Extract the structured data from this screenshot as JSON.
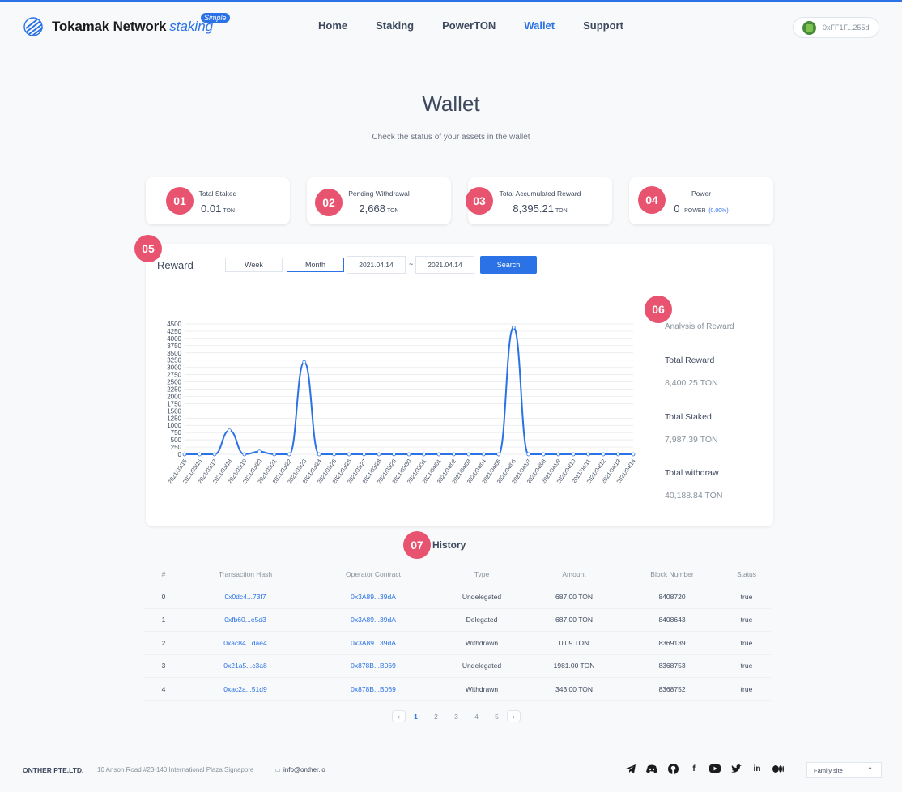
{
  "header": {
    "brand": "Tokamak Network",
    "brand_suffix": "staking",
    "badge": "Simple",
    "nav": [
      "Home",
      "Staking",
      "PowerTON",
      "Wallet",
      "Support"
    ],
    "active_nav": "Wallet",
    "account": "0xFF1F...255d"
  },
  "page": {
    "title": "Wallet",
    "subtitle": "Check the status of your assets in the wallet"
  },
  "summary": [
    {
      "marker": "01",
      "label": "Total Staked",
      "value": "0.01",
      "unit": "TON"
    },
    {
      "marker": "02",
      "label": "Pending Withdrawal",
      "value": "2,668",
      "unit": "TON"
    },
    {
      "marker": "03",
      "label": "Total Accumulated Reward",
      "value": "8,395.21",
      "unit": "TON"
    },
    {
      "marker": "04",
      "label": "Power",
      "value": "0",
      "unit": "POWER",
      "extra": "(0.00%)"
    }
  ],
  "reward": {
    "marker": "05",
    "title": "Reward",
    "week_label": "Week",
    "month_label": "Month",
    "date_from": "2021.04.14",
    "separator": "~",
    "date_to": "2021.04.14",
    "search_label": "Search"
  },
  "analysis": {
    "marker": "06",
    "title": "Analysis of Reward",
    "stats": [
      {
        "label": "Total Reward",
        "value": "8,400.25 TON"
      },
      {
        "label": "Total Staked",
        "value": "7,987.39 TON"
      },
      {
        "label": "Total withdraw",
        "value": "40,188.84 TON"
      }
    ]
  },
  "chart_data": {
    "type": "line",
    "title": "",
    "xlabel": "",
    "ylabel": "",
    "ylim": [
      0,
      4500
    ],
    "yticks": [
      0,
      250,
      500,
      750,
      1000,
      1250,
      1500,
      1750,
      2000,
      2250,
      2500,
      2750,
      3000,
      3250,
      3500,
      3750,
      4000,
      4250,
      4500
    ],
    "grid": true,
    "color": "#2a72e5",
    "categories": [
      "2021/03/15",
      "2021/03/16",
      "2021/03/17",
      "2021/03/18",
      "2021/03/19",
      "2021/03/20",
      "2021/03/21",
      "2021/03/22",
      "2021/03/23",
      "2021/03/24",
      "2021/03/25",
      "2021/03/26",
      "2021/03/27",
      "2021/03/28",
      "2021/03/29",
      "2021/03/30",
      "2021/03/31",
      "2021/04/01",
      "2021/04/02",
      "2021/04/03",
      "2021/04/04",
      "2021/04/05",
      "2021/04/06",
      "2021/04/07",
      "2021/04/08",
      "2021/04/09",
      "2021/04/10",
      "2021/04/11",
      "2021/04/12",
      "2021/04/13",
      "2021/04/14"
    ],
    "values": [
      0,
      0,
      0,
      820,
      0,
      90,
      0,
      0,
      3180,
      0,
      0,
      0,
      0,
      0,
      0,
      0,
      0,
      0,
      0,
      0,
      0,
      0,
      4380,
      0,
      0,
      0,
      0,
      0,
      0,
      0,
      0
    ]
  },
  "history": {
    "marker": "07",
    "title": "History",
    "columns": [
      "#",
      "Transaction Hash",
      "Operator Contract",
      "Type",
      "Amount",
      "Block Number",
      "Status"
    ],
    "rows": [
      [
        "0",
        "0x0dc4...73f7",
        "0x3A89...39dA",
        "Undelegated",
        "687.00 TON",
        "8408720",
        "true"
      ],
      [
        "1",
        "0xfb60...e5d3",
        "0x3A89...39dA",
        "Delegated",
        "687.00 TON",
        "8408643",
        "true"
      ],
      [
        "2",
        "0xac84...dae4",
        "0x3A89...39dA",
        "Withdrawn",
        "0.09 TON",
        "8369139",
        "true"
      ],
      [
        "3",
        "0x21a5...c3a8",
        "0x878B...B069",
        "Undelegated",
        "1981.00 TON",
        "8368753",
        "true"
      ],
      [
        "4",
        "0xac2a...51d9",
        "0x878B...B069",
        "Withdrawn",
        "343.00 TON",
        "8368752",
        "true"
      ]
    ],
    "pages": [
      "1",
      "2",
      "3",
      "4",
      "5"
    ],
    "active_page": "1"
  },
  "footer": {
    "company": "ONTHER PTE.LTD.",
    "address": "10 Anson Road #23-140 International Plaza Signapore",
    "email": "info@onther.io",
    "socials": [
      "telegram-icon",
      "discord-icon",
      "github-icon",
      "facebook-icon",
      "youtube-icon",
      "twitter-icon",
      "linkedin-icon",
      "medium-icon"
    ],
    "family_site": "Family site"
  }
}
